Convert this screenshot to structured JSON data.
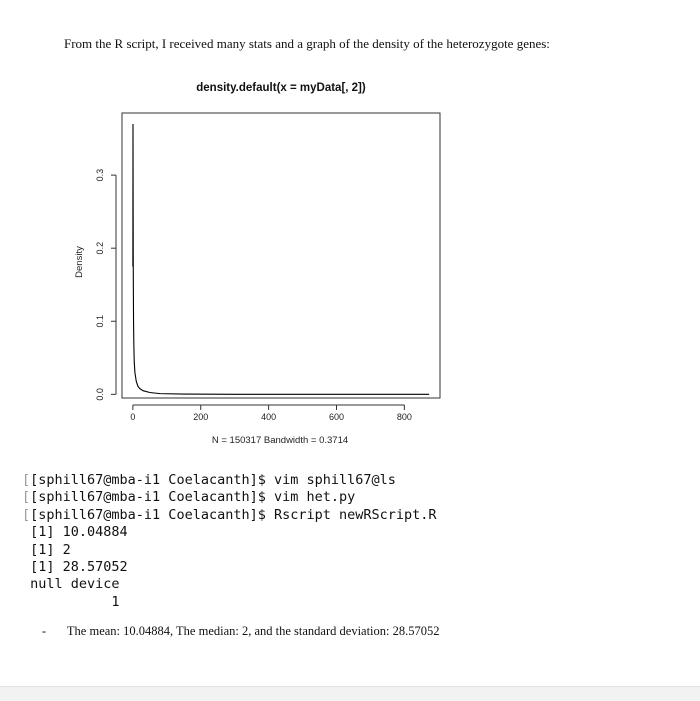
{
  "document": {
    "intro_text": "From the R script, I received many stats and a graph of the density of the heterozygote genes:",
    "summary_bullet": "The mean: 10.04884, The median: 2, and the standard deviation: 28.57052"
  },
  "terminal": {
    "lines": [
      {
        "prefix": "[",
        "text": "[sphill67@mba-i1 Coelacanth]$ vim sphill67@ls"
      },
      {
        "prefix": "[",
        "text": "[sphill67@mba-i1 Coelacanth]$ vim het.py"
      },
      {
        "prefix": "[",
        "text": "[sphill67@mba-i1 Coelacanth]$ Rscript newRScript.R"
      },
      {
        "prefix": "",
        "text": " [1] 10.04884"
      },
      {
        "prefix": "",
        "text": " [1] 2"
      },
      {
        "prefix": "",
        "text": " [1] 28.57052"
      },
      {
        "prefix": "",
        "text": " null device"
      },
      {
        "prefix": "",
        "text": "           1"
      }
    ]
  },
  "chart_data": {
    "type": "line",
    "title": "density.default(x = myData[, 2])",
    "xlabel": "N = 150317   Bandwidth = 0.3714",
    "ylabel": "Density",
    "xlim": [
      -32,
      905
    ],
    "ylim": [
      -0.005,
      0.385
    ],
    "x_ticks": [
      0,
      200,
      400,
      600,
      800
    ],
    "y_ticks": [
      0.0,
      0.1,
      0.2,
      0.3
    ],
    "x_tick_labels": [
      "0",
      "200",
      "400",
      "600",
      "800"
    ],
    "y_tick_labels": [
      "0.0",
      "0.1",
      "0.2",
      "0.3"
    ],
    "series": [
      {
        "color": "#000000",
        "x": [
          0.0,
          0.4,
          0.8,
          1.2,
          2,
          3,
          4,
          6,
          10,
          15,
          20,
          30,
          50,
          80,
          150,
          300,
          500,
          700,
          873
        ],
        "y": [
          0.175,
          0.37,
          0.26,
          0.17,
          0.1,
          0.065,
          0.045,
          0.03,
          0.018,
          0.011,
          0.008,
          0.005,
          0.0025,
          0.001,
          0.0004,
          0.0001,
          5e-05,
          2e-05,
          1e-05
        ]
      }
    ],
    "grid": false,
    "legend": "none"
  }
}
